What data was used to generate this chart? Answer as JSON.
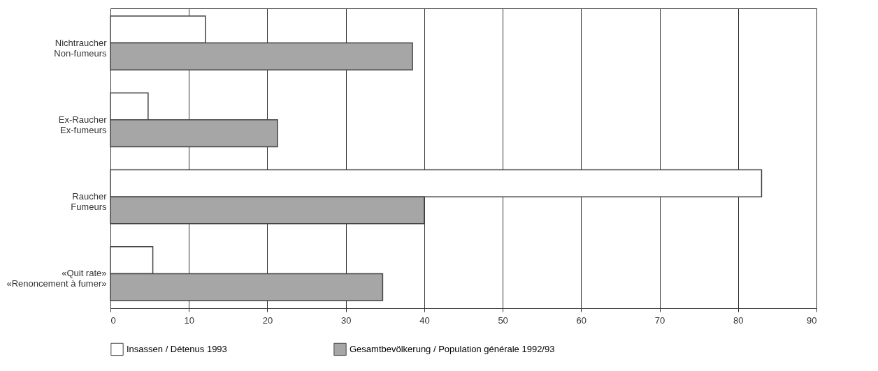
{
  "chart_data": {
    "type": "bar",
    "orientation": "horizontal",
    "categories": [
      "Nichtraucher\nNon-fumeurs",
      "Ex-Raucher\nEx-fumeurs",
      "Raucher\nFumeurs",
      "«Quit rate»\n«Renoncement à fumer»"
    ],
    "series": [
      {
        "name": "Insassen / Détenus 1993",
        "color": "#ffffff",
        "values": [
          12.1,
          4.8,
          83,
          5.4
        ]
      },
      {
        "name": "Gesamtbevölkerung / Population générale 1992/93",
        "color": "#a6a6a6",
        "values": [
          38.5,
          21.3,
          40,
          34.7
        ]
      }
    ],
    "xlim": [
      0,
      90
    ],
    "xticks": [
      0,
      10,
      20,
      30,
      40,
      50,
      60,
      70,
      80,
      90
    ],
    "grid": "x",
    "legend": "bottom"
  }
}
